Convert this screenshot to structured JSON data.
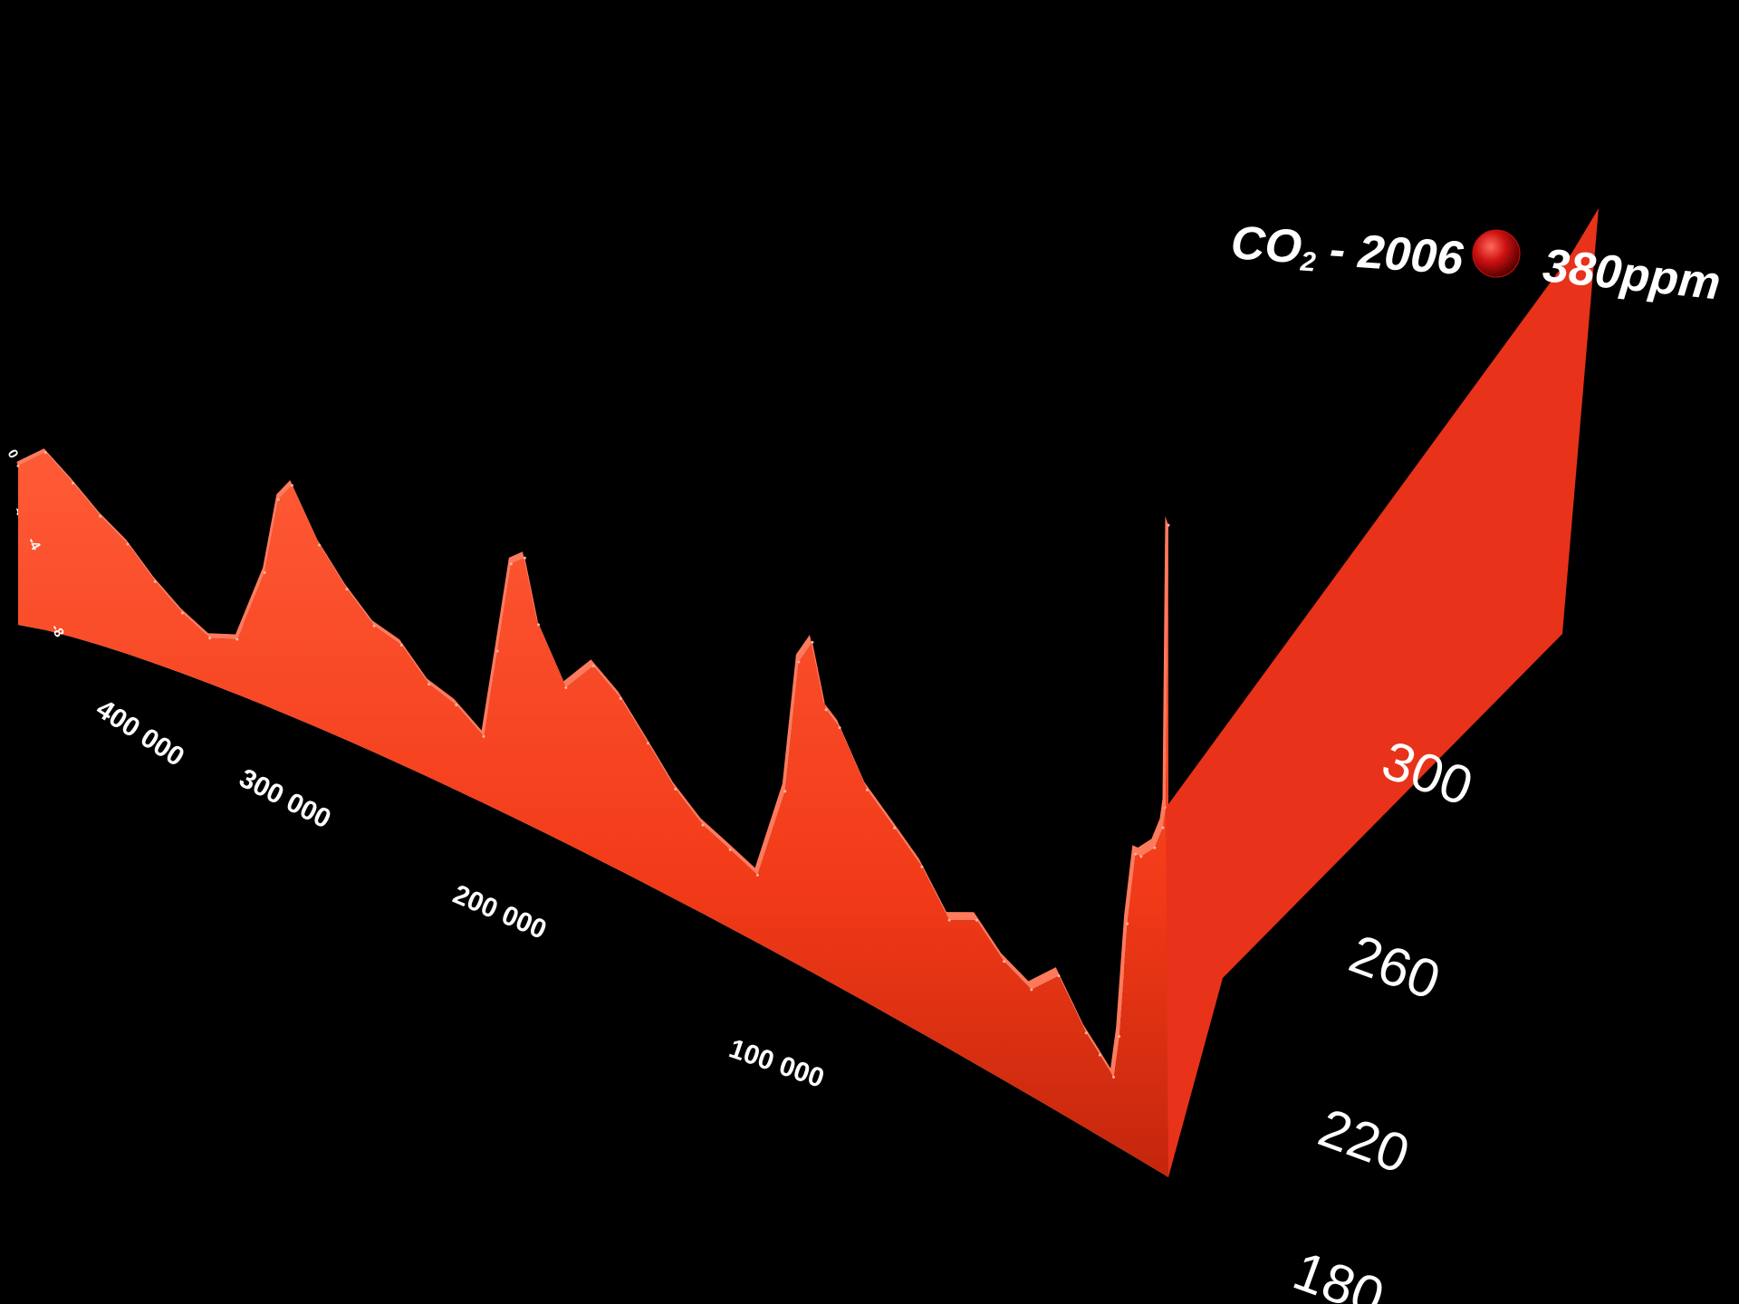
{
  "chart_data": {
    "type": "area",
    "annotation": {
      "label_main": "CO",
      "label_sub": "2",
      "label_rest": " - 2006",
      "value_label": "380ppm",
      "value": 380,
      "marker_color": "#cc1111"
    },
    "x_axis": {
      "ticks": [
        "400 000",
        "300 000",
        "200 000",
        "100 000"
      ],
      "tick_values": [
        400000,
        300000,
        200000,
        100000
      ]
    },
    "y_axis_co2": {
      "ticks": [
        "180",
        "220",
        "260",
        "300"
      ],
      "tick_values": [
        180,
        220,
        260,
        300
      ],
      "ylim": [
        180,
        380
      ]
    },
    "y_axis_temperature": {
      "ticks": [
        "0",
        "-4",
        "-8"
      ],
      "tick_values": [
        0,
        -4,
        -8
      ]
    },
    "series": [
      {
        "color": "#ff3d1c",
        "x": [
          420000,
          410000,
          400000,
          390000,
          380000,
          370000,
          360000,
          350000,
          340000,
          330000,
          325000,
          320000,
          310000,
          300000,
          290000,
          280000,
          270000,
          260000,
          250000,
          245000,
          240000,
          235000,
          230000,
          220000,
          210000,
          200000,
          190000,
          180000,
          170000,
          160000,
          150000,
          140000,
          135000,
          130000,
          125000,
          120000,
          110000,
          100000,
          90000,
          80000,
          70000,
          60000,
          50000,
          40000,
          30000,
          25000,
          20000,
          18000,
          15000,
          12000,
          10000,
          5000,
          2000,
          1000,
          0
        ],
        "values": [
          280,
          290,
          270,
          250,
          235,
          215,
          200,
          190,
          195,
          240,
          285,
          295,
          265,
          245,
          230,
          225,
          210,
          205,
          195,
          240,
          285,
          290,
          260,
          235,
          250,
          240,
          225,
          210,
          200,
          195,
          190,
          230,
          285,
          295,
          270,
          265,
          245,
          235,
          225,
          210,
          215,
          205,
          200,
          210,
          195,
          190,
          185,
          200,
          240,
          265,
          265,
          270,
          278,
          285,
          380
        ]
      },
      {
        "color": "#ddeeff",
        "x": [
          420000,
          410000,
          400000,
          390000,
          380000,
          370000,
          360000,
          350000,
          340000,
          330000,
          325000,
          320000,
          310000,
          300000,
          290000,
          280000,
          270000,
          260000,
          250000,
          245000,
          240000,
          235000,
          230000,
          220000,
          210000,
          200000,
          190000,
          180000,
          170000,
          160000,
          150000,
          140000,
          135000,
          130000,
          125000,
          120000,
          110000,
          100000,
          90000,
          80000,
          70000,
          60000,
          50000,
          40000,
          30000,
          25000,
          20000,
          18000,
          15000,
          12000,
          10000,
          5000,
          2000,
          1000,
          0
        ],
        "values": [
          1,
          0,
          -3,
          -6,
          -7,
          -8,
          -8,
          -8,
          -7,
          -2,
          2,
          1,
          -4,
          -5,
          -6,
          -6,
          -8,
          -8,
          -8,
          -2,
          2,
          2,
          -4,
          -7,
          -5,
          -6,
          -7,
          -8,
          -8,
          -8,
          -9,
          -3,
          2,
          2,
          -2,
          -2,
          -5,
          -6,
          -7,
          -7,
          -6,
          -7,
          -7,
          -6,
          -8,
          -8,
          -9,
          -7,
          -3,
          0,
          0,
          0,
          0,
          0,
          0
        ]
      }
    ]
  }
}
